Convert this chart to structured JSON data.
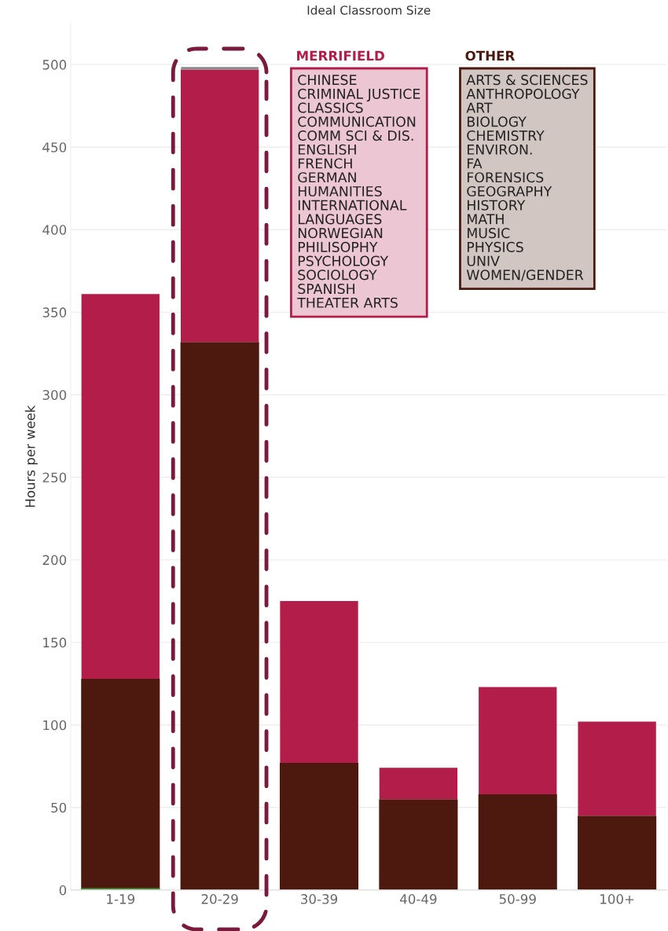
{
  "chart_data": {
    "type": "bar",
    "title": "Ideal Classroom Size",
    "ylabel": "Hours per week",
    "categories": [
      "1-19",
      "20-29",
      "30-39",
      "40-49",
      "50-99",
      "100+"
    ],
    "stacked": true,
    "series": [
      {
        "color": "#2ca02c",
        "values": [
          1,
          0,
          0,
          0,
          0,
          0
        ]
      },
      {
        "name": "OTHER",
        "color": "#4d190e",
        "values": [
          127,
          332,
          77,
          55,
          58,
          45
        ]
      },
      {
        "name": "MERRIFIELD",
        "color": "#b31d4a",
        "values": [
          233,
          165,
          98,
          19,
          65,
          57
        ]
      },
      {
        "color": "#8c8c8c",
        "values": [
          0,
          1.5,
          0,
          0,
          0,
          0
        ]
      }
    ],
    "annotations": [
      "CHINESE\nCRIMINAL JUSTICE\nCLASSICS\nCOMMUNICATION\nCOMM SCI & DIS.\nENGLISH\nFRENCH\nGERMAN\nHUMANITIES\nINTERNATIONAL\nLANGUAGES\nNORWEGIAN\nPHILISOPHY\nPSYCHOLOGY\nSOCIOLOGY\nSPANISH\nTHEATER ARTS",
      "ARTS & SCIENCES\nANTHROPOLOGY\nART\nBIOLOGY\nCHEMISTRY\nENVIRON.\nFA\nFORENSICS\nGEOGRAPHY\nHISTORY\nMATH\nMUSIC\nPHYSICS\nUNIV\nWOMEN/GENDER"
    ],
    "ylim": [
      0,
      525
    ],
    "yticks": [
      0,
      50,
      100,
      150,
      200,
      250,
      300,
      350,
      400,
      450,
      500
    ],
    "grid": "y",
    "legend": "top right"
  }
}
